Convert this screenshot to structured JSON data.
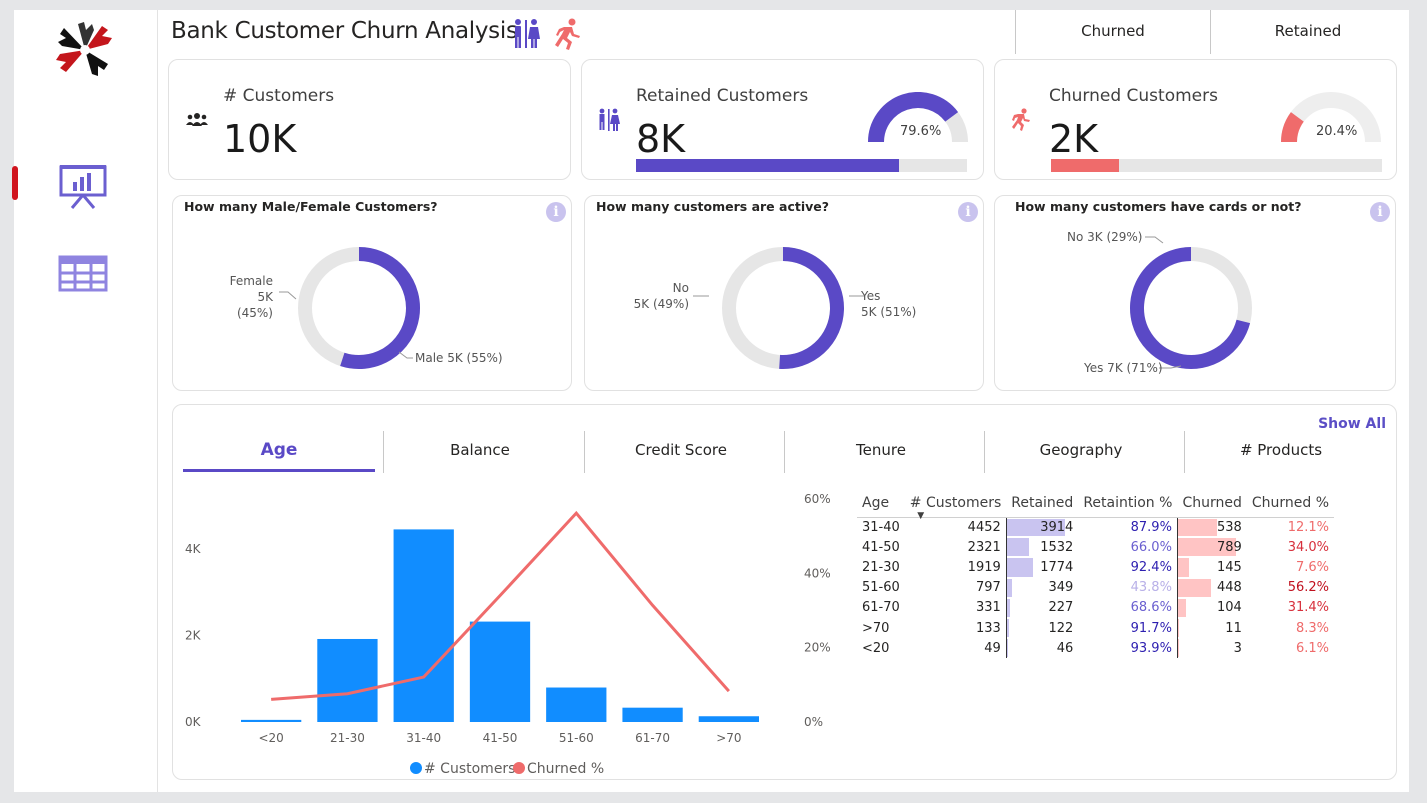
{
  "app": {
    "title": "Bank Customer Churn Analysis"
  },
  "colors": {
    "accent": "#5a49c6",
    "churn": "#ef6b6b",
    "bar_blue": "#118dff",
    "track": "#e6e6e6"
  },
  "nav": {
    "items": [
      {
        "icon": "presentation-chart-icon",
        "active": true
      },
      {
        "icon": "table-grid-icon",
        "active": false
      }
    ]
  },
  "toggles": [
    "Churned",
    "Retained"
  ],
  "kpis": {
    "customers": {
      "label": "# Customers",
      "value": "10K",
      "icon": "people-icon"
    },
    "retained": {
      "label": "Retained Customers",
      "value": "8K",
      "pct": "79.6%",
      "fraction": 0.796,
      "icon": "restroom-icon"
    },
    "churned": {
      "label": "Churned Customers",
      "value": "2K",
      "pct": "20.4%",
      "fraction": 0.204,
      "icon": "running-icon"
    }
  },
  "questions": {
    "gender": {
      "title": "How many Male/Female Customers?",
      "segments": [
        {
          "name": "Female",
          "label_line1": "Female",
          "label_line2": "5K (45%)",
          "share": 0.45
        },
        {
          "name": "Male",
          "label_line1": "Male 5K (55%)",
          "share": 0.55
        }
      ]
    },
    "active": {
      "title": "How many customers are active?",
      "segments": [
        {
          "name": "No",
          "label_line1": "No",
          "label_line2": "5K (49%)",
          "share": 0.49
        },
        {
          "name": "Yes",
          "label_line1": "Yes",
          "label_line2": "5K (51%)",
          "share": 0.51
        }
      ]
    },
    "cards": {
      "title": "How many customers have cards or not?",
      "segments": [
        {
          "name": "No",
          "label_line1": "No 3K (29%)",
          "share": 0.29
        },
        {
          "name": "Yes",
          "label_line1": "Yes 7K (71%)",
          "share": 0.71
        }
      ]
    }
  },
  "tabs": {
    "show_all": "Show All",
    "items": [
      "Age",
      "Balance",
      "Credit Score",
      "Tenure",
      "Geography",
      "# Products"
    ],
    "active_index": 0
  },
  "chart_data": {
    "type": "bar",
    "categories": [
      "<20",
      "21-30",
      "31-40",
      "41-50",
      "51-60",
      "61-70",
      ">70"
    ],
    "series": [
      {
        "name": "# Customers",
        "type": "bar",
        "axis": "left",
        "values": [
          49,
          1919,
          4452,
          2321,
          797,
          331,
          133
        ]
      },
      {
        "name": "Churned %",
        "type": "line",
        "axis": "right",
        "values": [
          6.1,
          7.6,
          12.1,
          34.0,
          56.2,
          31.4,
          8.3
        ]
      }
    ],
    "y_left": {
      "ticks": [
        "0K",
        "2K",
        "4K"
      ],
      "tick_values": [
        0,
        2000,
        4000
      ],
      "ylim": [
        0,
        5000
      ]
    },
    "y_right": {
      "ticks": [
        "0%",
        "20%",
        "40%",
        "60%"
      ],
      "tick_values": [
        0,
        20,
        40,
        60
      ],
      "ylim": [
        0,
        60
      ]
    },
    "legend": [
      "# Customers",
      "Churned %"
    ],
    "legend_position": "bottom"
  },
  "matrix": {
    "headers": [
      "Age",
      "# Customers",
      "Retained",
      "Retaintion %",
      "Churned",
      "Churned %"
    ],
    "sorted_column": "# Customers",
    "rows": [
      {
        "age": "31-40",
        "customers": "4452",
        "retained": "3914",
        "retained_pct": "87.9%",
        "churned": "538",
        "churned_pct": "12.1%",
        "r": 3914,
        "c": 538,
        "rp": 87.9,
        "cp": 12.1
      },
      {
        "age": "41-50",
        "customers": "2321",
        "retained": "1532",
        "retained_pct": "66.0%",
        "churned": "789",
        "churned_pct": "34.0%",
        "r": 1532,
        "c": 789,
        "rp": 66.0,
        "cp": 34.0
      },
      {
        "age": "21-30",
        "customers": "1919",
        "retained": "1774",
        "retained_pct": "92.4%",
        "churned": "145",
        "churned_pct": "7.6%",
        "r": 1774,
        "c": 145,
        "rp": 92.4,
        "cp": 7.6
      },
      {
        "age": "51-60",
        "customers": "797",
        "retained": "349",
        "retained_pct": "43.8%",
        "churned": "448",
        "churned_pct": "56.2%",
        "r": 349,
        "c": 448,
        "rp": 43.8,
        "cp": 56.2
      },
      {
        "age": "61-70",
        "customers": "331",
        "retained": "227",
        "retained_pct": "68.6%",
        "churned": "104",
        "churned_pct": "31.4%",
        "r": 227,
        "c": 104,
        "rp": 68.6,
        "cp": 31.4
      },
      {
        "age": ">70",
        "customers": "133",
        "retained": "122",
        "retained_pct": "91.7%",
        "churned": "11",
        "churned_pct": "8.3%",
        "r": 122,
        "c": 11,
        "rp": 91.7,
        "cp": 8.3
      },
      {
        "age": "<20",
        "customers": "49",
        "retained": "46",
        "retained_pct": "93.9%",
        "churned": "3",
        "churned_pct": "6.1%",
        "r": 46,
        "c": 3,
        "rp": 93.9,
        "cp": 6.1
      }
    ]
  }
}
